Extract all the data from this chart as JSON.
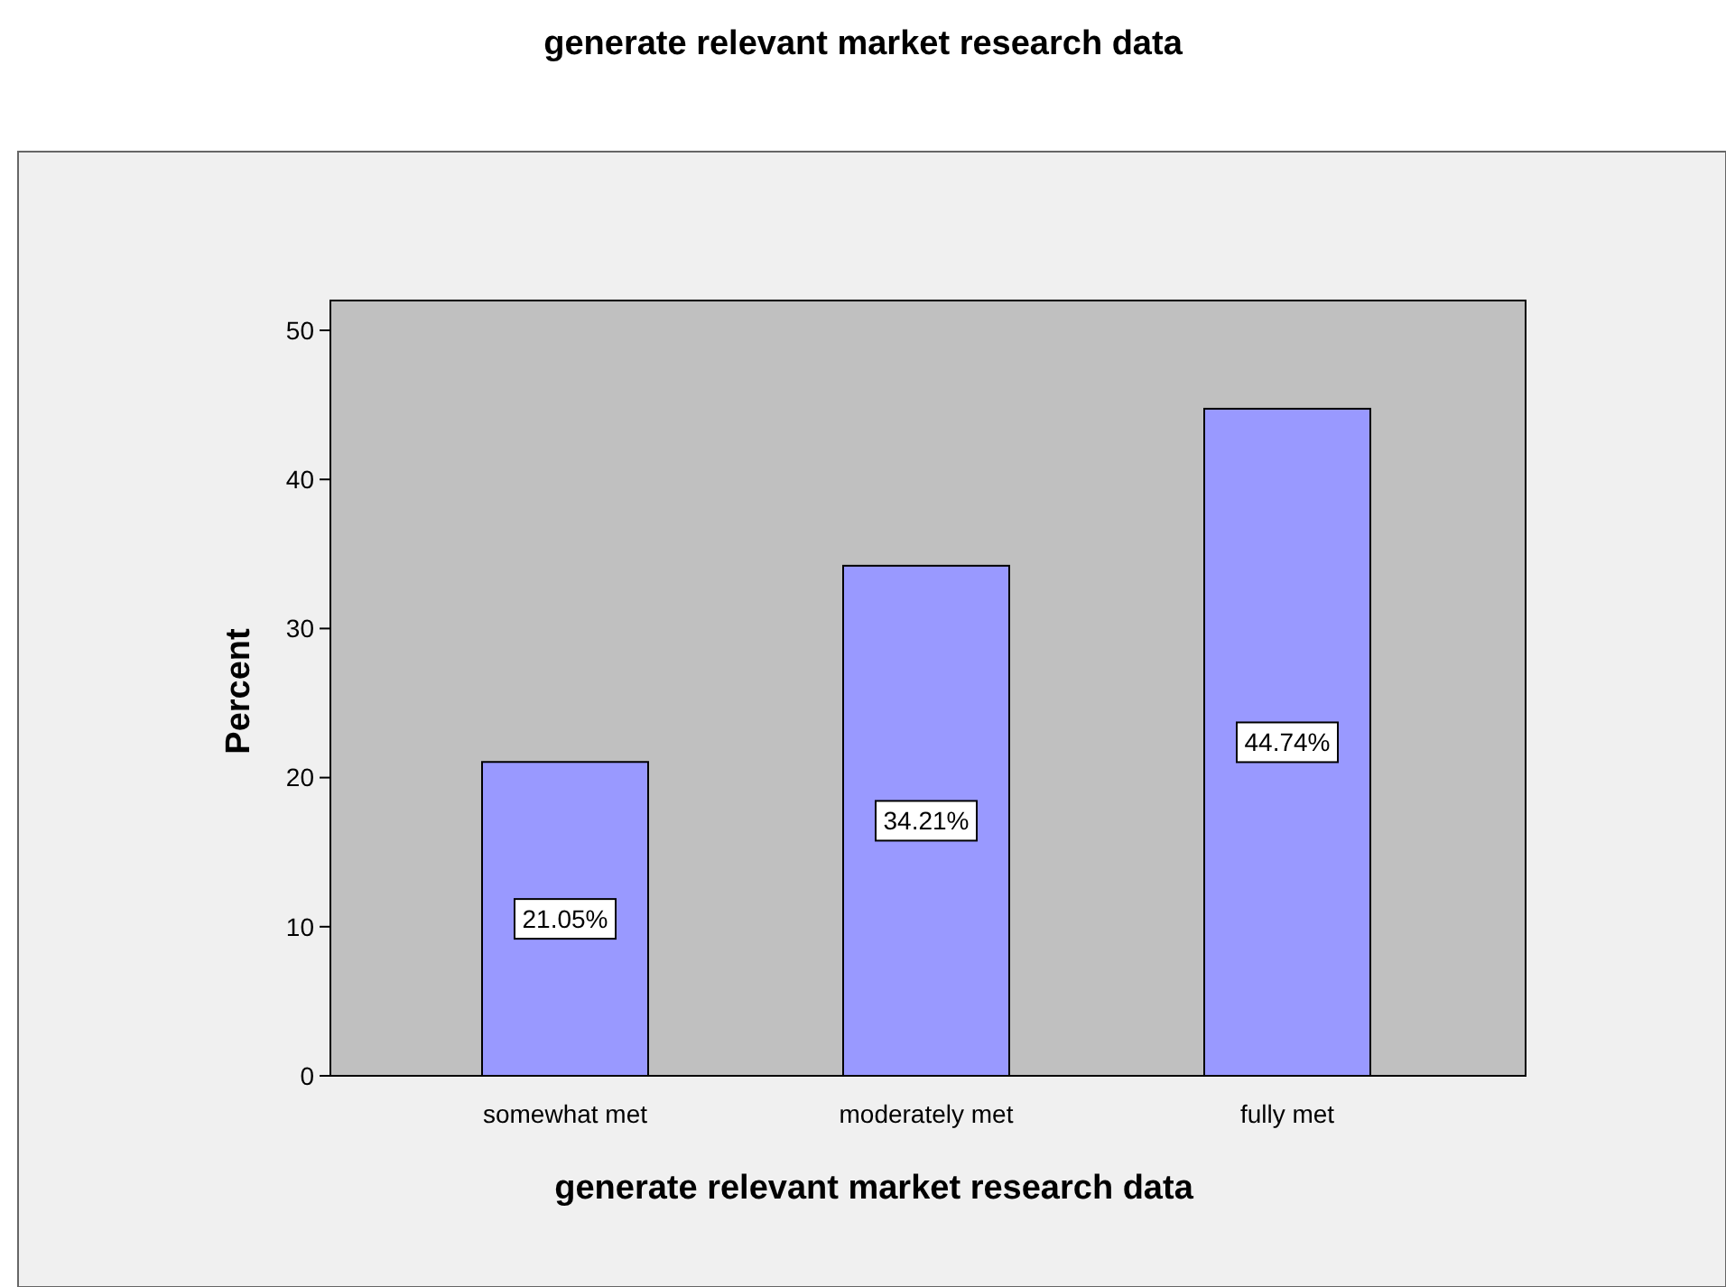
{
  "chart_data": {
    "type": "bar",
    "title": "generate relevant market research data",
    "xlabel": "generate relevant market research data",
    "ylabel": "Percent",
    "categories": [
      "somewhat met",
      "moderately met",
      "fully met"
    ],
    "values": [
      21.05,
      34.21,
      44.74
    ],
    "value_labels": [
      "21.05%",
      "34.21%",
      "44.74%"
    ],
    "color": "#9999ff",
    "ylim": [
      0,
      52
    ],
    "yticks": [
      0,
      10,
      20,
      30,
      40,
      50
    ]
  }
}
